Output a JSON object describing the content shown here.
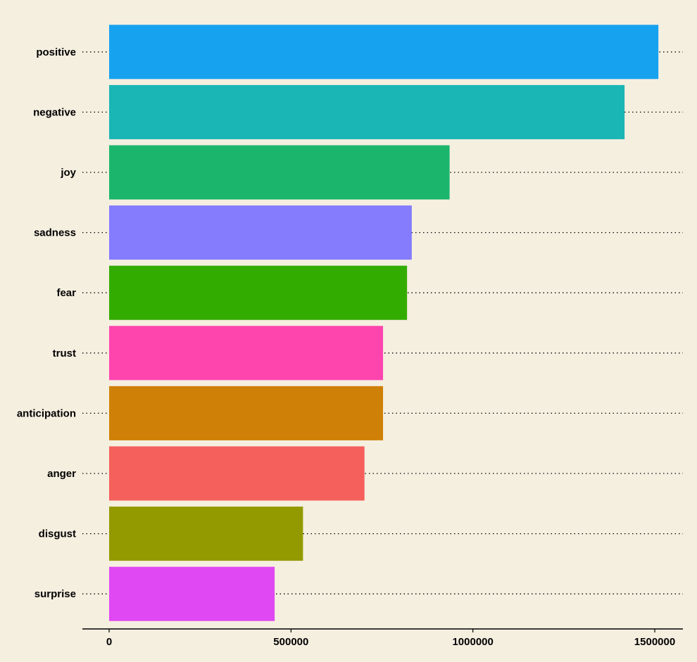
{
  "chart_data": {
    "type": "bar",
    "orientation": "horizontal",
    "categories": [
      "positive",
      "negative",
      "joy",
      "sadness",
      "fear",
      "trust",
      "anticipation",
      "anger",
      "disgust",
      "surprise"
    ],
    "values": [
      1510000,
      1417000,
      936000,
      832000,
      819000,
      753000,
      753000,
      702000,
      533000,
      455000
    ],
    "colors": [
      "#17a2f0",
      "#1ab5b5",
      "#1bb66c",
      "#857bfd",
      "#33ac00",
      "#fe45ae",
      "#cf8006",
      "#f5605c",
      "#939a00",
      "#df48f2"
    ],
    "xlim": [
      0,
      1570000
    ],
    "x_ticks": [
      0,
      500000,
      1000000,
      1500000
    ],
    "x_tick_labels": [
      "0",
      "500000",
      "1000000",
      "1500000"
    ],
    "grid": "dotted horizontal lines at each category",
    "legend": "none",
    "title": "",
    "xlabel": "",
    "ylabel": ""
  },
  "style": {
    "background": "#f5efe0",
    "axis_color": "#000000"
  }
}
